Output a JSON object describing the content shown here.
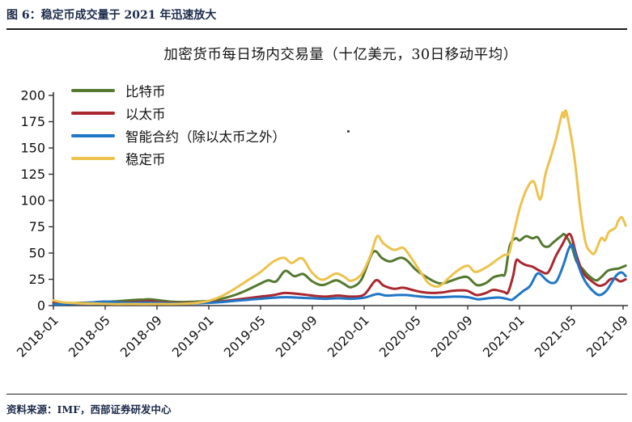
{
  "page": {
    "caption": "图 6：稳定币成交量于 2021 年迅速放大",
    "source": "资料来源：IMF，西部证券研发中心"
  },
  "chart_data": {
    "type": "line",
    "title": "加密货币每日场内交易量（十亿美元，30日移动平均）",
    "grid": false,
    "legend_position": "top-left",
    "y_axis": {
      "min": 0,
      "max": 200,
      "ticks": [
        0,
        25,
        50,
        75,
        100,
        125,
        150,
        175,
        200
      ]
    },
    "x_axis": {
      "unit": "months_since_2018-01",
      "tick_positions": [
        0,
        4,
        8,
        12,
        16,
        20,
        24,
        28,
        32,
        36,
        40,
        44
      ],
      "tick_labels": [
        "2018-01",
        "2018-05",
        "2018-09",
        "2019-01",
        "2019-05",
        "2019-09",
        "2020-01",
        "2020-05",
        "2020-09",
        "2021-01",
        "2021-05",
        "2021-09"
      ]
    },
    "series": [
      {
        "id": "bitcoin",
        "name": "比特币",
        "color": "#54792f",
        "points": [
          [
            0,
            3.2
          ],
          [
            1,
            2.4
          ],
          [
            2,
            2.6
          ],
          [
            3,
            3
          ],
          [
            4,
            3.6
          ],
          [
            5,
            4.2
          ],
          [
            6,
            5.2
          ],
          [
            7,
            5.8
          ],
          [
            7.5,
            6
          ],
          [
            8.2,
            5
          ],
          [
            9,
            3.8
          ],
          [
            10,
            3.4
          ],
          [
            11,
            3.8
          ],
          [
            12,
            4.4
          ],
          [
            13,
            6.5
          ],
          [
            14,
            10
          ],
          [
            15,
            15
          ],
          [
            16,
            21
          ],
          [
            16.6,
            24
          ],
          [
            17.2,
            23
          ],
          [
            17.9,
            33
          ],
          [
            18.6,
            28
          ],
          [
            19.3,
            30
          ],
          [
            20,
            23
          ],
          [
            20.8,
            19.5
          ],
          [
            21.8,
            24
          ],
          [
            22.4,
            21
          ],
          [
            23,
            17.5
          ],
          [
            23.8,
            25
          ],
          [
            24.7,
            51
          ],
          [
            25.4,
            45
          ],
          [
            26,
            42
          ],
          [
            26.8,
            45.5
          ],
          [
            27.3,
            43
          ],
          [
            28,
            34
          ],
          [
            28.7,
            28
          ],
          [
            29.4,
            23
          ],
          [
            30,
            21
          ],
          [
            30.7,
            23.5
          ],
          [
            31.4,
            26.5
          ],
          [
            32,
            27
          ],
          [
            32.7,
            19.5
          ],
          [
            33.4,
            21.5
          ],
          [
            34,
            27
          ],
          [
            34.6,
            29
          ],
          [
            34.9,
            31
          ],
          [
            35.25,
            57
          ],
          [
            35.7,
            64
          ],
          [
            36,
            62
          ],
          [
            36.5,
            66
          ],
          [
            37,
            64
          ],
          [
            37.4,
            65
          ],
          [
            37.8,
            57.5
          ],
          [
            38.2,
            56
          ],
          [
            38.6,
            60
          ],
          [
            39.2,
            66
          ],
          [
            39.5,
            67.5
          ],
          [
            40,
            57
          ],
          [
            40.4,
            42
          ],
          [
            40.9,
            34.5
          ],
          [
            41.3,
            29
          ],
          [
            41.9,
            24
          ],
          [
            42.3,
            27
          ],
          [
            42.8,
            33
          ],
          [
            43.2,
            34.5
          ],
          [
            43.7,
            35.5
          ],
          [
            44.2,
            38
          ]
        ]
      },
      {
        "id": "ethereum",
        "name": "以太币",
        "color": "#a9282f",
        "points": [
          [
            0,
            2.3
          ],
          [
            1,
            1.8
          ],
          [
            2,
            2
          ],
          [
            3,
            2.4
          ],
          [
            4,
            2.8
          ],
          [
            5,
            3
          ],
          [
            6,
            3.3
          ],
          [
            7,
            3.8
          ],
          [
            7.5,
            4
          ],
          [
            8.2,
            3.2
          ],
          [
            9,
            2.6
          ],
          [
            10,
            2.4
          ],
          [
            11,
            2.6
          ],
          [
            12,
            3
          ],
          [
            13,
            4
          ],
          [
            14,
            5.5
          ],
          [
            15,
            7
          ],
          [
            16,
            8.5
          ],
          [
            17,
            10
          ],
          [
            17.9,
            12
          ],
          [
            19,
            11
          ],
          [
            20,
            9.5
          ],
          [
            21,
            8.5
          ],
          [
            22,
            9.5
          ],
          [
            23,
            8.5
          ],
          [
            24,
            10.5
          ],
          [
            24.9,
            24
          ],
          [
            25.5,
            19
          ],
          [
            26.3,
            16
          ],
          [
            27,
            17
          ],
          [
            27.7,
            15
          ],
          [
            28.4,
            13
          ],
          [
            29.2,
            12
          ],
          [
            30,
            12.5
          ],
          [
            30.8,
            14
          ],
          [
            31.5,
            14.5
          ],
          [
            32,
            14
          ],
          [
            32.7,
            10
          ],
          [
            33.4,
            12
          ],
          [
            34,
            15
          ],
          [
            34.8,
            13
          ],
          [
            35.1,
            12.5
          ],
          [
            35.5,
            28
          ],
          [
            35.75,
            43
          ],
          [
            36.1,
            41
          ],
          [
            36.5,
            38.5
          ],
          [
            37,
            37
          ],
          [
            37.6,
            33
          ],
          [
            38.2,
            31.5
          ],
          [
            38.8,
            47
          ],
          [
            39.3,
            58
          ],
          [
            39.7,
            67
          ],
          [
            40,
            66
          ],
          [
            40.4,
            48
          ],
          [
            40.9,
            31.5
          ],
          [
            41.5,
            24
          ],
          [
            42.1,
            19
          ],
          [
            42.6,
            20.5
          ],
          [
            43,
            25
          ],
          [
            43.4,
            25.5
          ],
          [
            43.8,
            23
          ],
          [
            44.2,
            25
          ]
        ]
      },
      {
        "id": "smart-contract",
        "name": "智能合约（除以太币之外）",
        "color": "#2076c6",
        "points": [
          [
            0,
            1.2
          ],
          [
            1,
            1.5
          ],
          [
            2,
            2
          ],
          [
            3,
            3
          ],
          [
            3.5,
            3.5
          ],
          [
            4,
            3.8
          ],
          [
            5,
            3
          ],
          [
            6,
            2.6
          ],
          [
            7,
            2.8
          ],
          [
            8,
            2.6
          ],
          [
            9,
            2.2
          ],
          [
            10,
            2
          ],
          [
            11,
            2.2
          ],
          [
            12,
            2.6
          ],
          [
            13,
            3.4
          ],
          [
            14,
            4.5
          ],
          [
            15,
            5.5
          ],
          [
            16,
            6.5
          ],
          [
            17,
            7.5
          ],
          [
            18,
            8
          ],
          [
            19,
            7.5
          ],
          [
            20,
            7
          ],
          [
            21,
            6.5
          ],
          [
            22,
            7
          ],
          [
            23,
            6.5
          ],
          [
            24,
            7.5
          ],
          [
            25,
            11
          ],
          [
            25.7,
            9.5
          ],
          [
            26.5,
            10
          ],
          [
            27.3,
            10
          ],
          [
            28,
            9
          ],
          [
            29,
            8
          ],
          [
            30,
            8
          ],
          [
            31,
            8.5
          ],
          [
            32,
            8
          ],
          [
            32.8,
            6
          ],
          [
            33.6,
            7
          ],
          [
            34.4,
            7.7
          ],
          [
            35,
            6.5
          ],
          [
            35.4,
            5.5
          ],
          [
            35.9,
            10
          ],
          [
            36.3,
            14
          ],
          [
            36.8,
            18.5
          ],
          [
            37.3,
            29.5
          ],
          [
            37.6,
            30
          ],
          [
            38.1,
            24
          ],
          [
            38.5,
            21.5
          ],
          [
            38.9,
            24
          ],
          [
            39.4,
            39
          ],
          [
            39.8,
            54
          ],
          [
            40.1,
            57
          ],
          [
            40.5,
            40
          ],
          [
            40.9,
            27
          ],
          [
            41.3,
            19
          ],
          [
            41.8,
            12.5
          ],
          [
            42.2,
            10
          ],
          [
            42.7,
            14
          ],
          [
            43.1,
            21.5
          ],
          [
            43.5,
            29
          ],
          [
            43.9,
            31.5
          ],
          [
            44.2,
            28
          ]
        ]
      },
      {
        "id": "stablecoin",
        "name": "稳定币",
        "color": "#edc24d",
        "points": [
          [
            0,
            5
          ],
          [
            0.5,
            3.5
          ],
          [
            1,
            2.8
          ],
          [
            2,
            2.2
          ],
          [
            3,
            2
          ],
          [
            4,
            1.6
          ],
          [
            5,
            1.4
          ],
          [
            6,
            1.5
          ],
          [
            7,
            1.4
          ],
          [
            8,
            1.5
          ],
          [
            9,
            1.5
          ],
          [
            10,
            1.8
          ],
          [
            11,
            2.5
          ],
          [
            12,
            4.5
          ],
          [
            13,
            9
          ],
          [
            14,
            16
          ],
          [
            15,
            24
          ],
          [
            16,
            32
          ],
          [
            17,
            42
          ],
          [
            17.8,
            45.5
          ],
          [
            18.4,
            40.5
          ],
          [
            19.2,
            45
          ],
          [
            20,
            31
          ],
          [
            20.8,
            24.5
          ],
          [
            21.8,
            30.5
          ],
          [
            22.5,
            27
          ],
          [
            23,
            23.5
          ],
          [
            23.8,
            30
          ],
          [
            24.5,
            48
          ],
          [
            25,
            66
          ],
          [
            25.5,
            59
          ],
          [
            26.3,
            53
          ],
          [
            27,
            55
          ],
          [
            27.6,
            46
          ],
          [
            28.3,
            33
          ],
          [
            29,
            21
          ],
          [
            29.8,
            18.5
          ],
          [
            30.6,
            27
          ],
          [
            31.3,
            34
          ],
          [
            32,
            38
          ],
          [
            32.6,
            32
          ],
          [
            33.5,
            37
          ],
          [
            34.3,
            44
          ],
          [
            34.8,
            48
          ],
          [
            35.2,
            50
          ],
          [
            35.5,
            66
          ],
          [
            35.8,
            82
          ],
          [
            36.1,
            96
          ],
          [
            36.6,
            112
          ],
          [
            37.1,
            118
          ],
          [
            37.6,
            101
          ],
          [
            38,
            125
          ],
          [
            38.4,
            141
          ],
          [
            38.8,
            158
          ],
          [
            39.3,
            183
          ],
          [
            39.45,
            179
          ],
          [
            39.6,
            185
          ],
          [
            40,
            160
          ],
          [
            40.3,
            135
          ],
          [
            40.7,
            91
          ],
          [
            41.1,
            60
          ],
          [
            41.5,
            51
          ],
          [
            41.8,
            50
          ],
          [
            42.3,
            64
          ],
          [
            42.6,
            62
          ],
          [
            42.9,
            70
          ],
          [
            43.4,
            74
          ],
          [
            43.6,
            80
          ],
          [
            43.9,
            84
          ],
          [
            44.2,
            76
          ]
        ]
      }
    ]
  }
}
